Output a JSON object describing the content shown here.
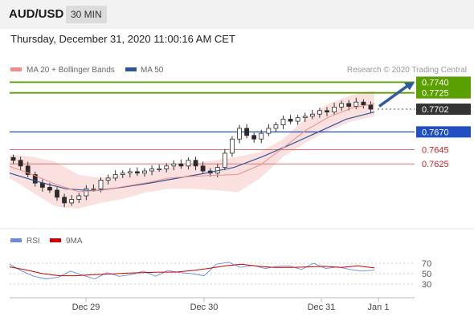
{
  "header": {
    "pair": "AUD/USD",
    "timeframe": "30 MIN"
  },
  "datetime": "Thursday, December 31, 2020 11:00:16 AM CET",
  "legend": {
    "bollinger_label": "MA 20 + Bollinger Bands",
    "ma50_label": "MA 50",
    "credit": "Research © 2020 Trading Central",
    "bollinger_color": "#f28b8b",
    "ma50_color": "#2f5597"
  },
  "rsi_legend": {
    "rsi_label": "RSI",
    "ma_label": "9MA",
    "rsi_color": "#6a8ad8",
    "ma_color": "#cc0000"
  },
  "chart_data": {
    "type": "candlestick",
    "x_labels": [
      "Dec 29",
      "Dec 30",
      "Dec 31",
      "Jan 1"
    ],
    "price_range": [
      0.7545,
      0.7745
    ],
    "last_price": 0.7702,
    "levels": [
      {
        "value": 0.774,
        "label": "0.7740",
        "kind": "resistance"
      },
      {
        "value": 0.7725,
        "label": "0.7725",
        "kind": "resistance"
      },
      {
        "value": 0.7702,
        "label": "0.7702",
        "kind": "last"
      },
      {
        "value": 0.767,
        "label": "0.7670",
        "kind": "pivot"
      },
      {
        "value": 0.7645,
        "label": "0.7645",
        "kind": "support"
      },
      {
        "value": 0.7625,
        "label": "0.7625",
        "kind": "support"
      }
    ],
    "close_series": [
      0.763,
      0.7622,
      0.761,
      0.7598,
      0.7592,
      0.7588,
      0.7578,
      0.757,
      0.7575,
      0.758,
      0.759,
      0.759,
      0.7602,
      0.7605,
      0.761,
      0.7612,
      0.7614,
      0.7612,
      0.7615,
      0.7618,
      0.7618,
      0.7622,
      0.7625,
      0.7622,
      0.763,
      0.7622,
      0.7615,
      0.7612,
      0.762,
      0.764,
      0.766,
      0.7675,
      0.7665,
      0.766,
      0.7668,
      0.7675,
      0.768,
      0.7688,
      0.7685,
      0.769,
      0.7692,
      0.7695,
      0.77,
      0.7698,
      0.7705,
      0.771,
      0.7706,
      0.7712,
      0.7708,
      0.7702
    ],
    "bollinger_band": {
      "upper": [
        0.7638,
        0.7635,
        0.7628,
        0.761,
        0.7605,
        0.761,
        0.7612,
        0.762,
        0.7625,
        0.763,
        0.7635,
        0.7642,
        0.766,
        0.769,
        0.771,
        0.7722,
        0.7728
      ],
      "lower": [
        0.7605,
        0.7585,
        0.7565,
        0.7562,
        0.757,
        0.7576,
        0.7585,
        0.759,
        0.759,
        0.7588,
        0.7585,
        0.7605,
        0.7635,
        0.7655,
        0.7672,
        0.7685,
        0.7692
      ]
    },
    "ma50_series": [
      0.7612,
      0.76,
      0.759,
      0.7587,
      0.7592,
      0.7598,
      0.7605,
      0.7612,
      0.762,
      0.7635,
      0.7652,
      0.767,
      0.7688,
      0.7698
    ],
    "forecast": {
      "from": 0.7706,
      "to": 0.774
    },
    "rsi": {
      "ticks": [
        "70",
        "50",
        "30"
      ],
      "range": [
        10,
        90
      ],
      "rsi_series": [
        68,
        55,
        45,
        40,
        43,
        55,
        47,
        40,
        52,
        45,
        48,
        55,
        45,
        56,
        52,
        50,
        46,
        68,
        72,
        62,
        66,
        60,
        64,
        65,
        58,
        70,
        60,
        63,
        58,
        55,
        57
      ],
      "ma_series": [
        63,
        57,
        50,
        46,
        46,
        48,
        49,
        51,
        52,
        53,
        53,
        56,
        60,
        65,
        68,
        64,
        62,
        62,
        63,
        64,
        62,
        65,
        61
      ]
    }
  }
}
